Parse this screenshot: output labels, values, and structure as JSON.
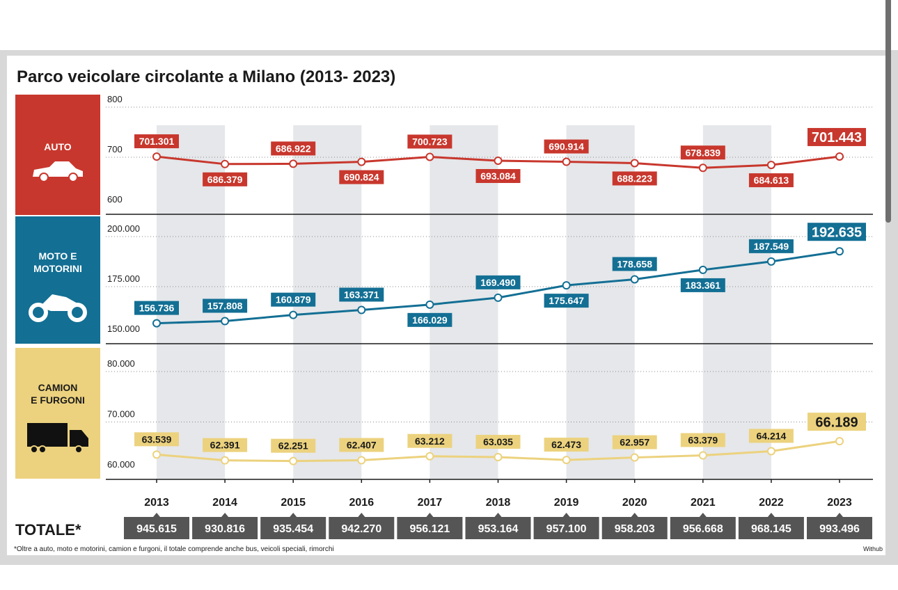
{
  "chart_data": {
    "type": "line",
    "title": "Parco veicolare circolante a Milano (2013- 2023)",
    "categories": [
      "2013",
      "2014",
      "2015",
      "2016",
      "2017",
      "2018",
      "2019",
      "2020",
      "2021",
      "2022",
      "2023"
    ],
    "panels": [
      {
        "name": "AUTO",
        "label_lines": [
          "AUTO"
        ],
        "icon": "car-icon",
        "color": "#c8372d",
        "label_bg": "#c8372d",
        "label_text_color": "#ffffff",
        "ylim": [
          600,
          800
        ],
        "yticks": [
          800,
          700,
          600
        ],
        "ytick_labels": [
          "800",
          "700",
          "600"
        ],
        "values": [
          701.301,
          686.379,
          686.922,
          690.824,
          700.723,
          693.084,
          690.914,
          688.223,
          678.839,
          684.613,
          701.443
        ],
        "value_labels": [
          "701.301",
          "686.379",
          "686.922",
          "690.824",
          "700.723",
          "693.084",
          "690.914",
          "688.223",
          "678.839",
          "684.613",
          "701.443"
        ],
        "label_side": [
          "above",
          "below",
          "above",
          "below",
          "above",
          "below",
          "above",
          "below",
          "above",
          "below",
          "above"
        ]
      },
      {
        "name": "MOTO E MOTORINI",
        "label_lines": [
          "MOTO E",
          "MOTORINI"
        ],
        "icon": "motorbike-icon",
        "color": "#136f94",
        "label_bg": "#136f94",
        "label_text_color": "#ffffff",
        "ylim": [
          150000,
          200000
        ],
        "yticks": [
          200000,
          175000,
          150000
        ],
        "ytick_labels": [
          "200.000",
          "175.000",
          "150.000"
        ],
        "values": [
          156736,
          157808,
          160879,
          163371,
          166029,
          169490,
          175647,
          178658,
          183361,
          187549,
          192635
        ],
        "value_labels": [
          "156.736",
          "157.808",
          "160.879",
          "163.371",
          "166.029",
          "169.490",
          "175.647",
          "178.658",
          "183.361",
          "187.549",
          "192.635"
        ],
        "label_side": [
          "above",
          "above",
          "above",
          "above",
          "below",
          "above",
          "below",
          "above",
          "below",
          "above",
          "above"
        ]
      },
      {
        "name": "CAMION E FURGONI",
        "label_lines": [
          "CAMION",
          "E FURGONI"
        ],
        "icon": "truck-icon",
        "color": "#ecd27e",
        "label_bg": "#ecd27e",
        "label_text_color": "#1a1a1a",
        "ylim": [
          60000,
          80000
        ],
        "yticks": [
          80000,
          70000,
          60000
        ],
        "ytick_labels": [
          "80.000",
          "70.000",
          "60.000"
        ],
        "values": [
          63539,
          62391,
          62251,
          62407,
          63212,
          63035,
          62473,
          62957,
          63379,
          64214,
          66189
        ],
        "value_labels": [
          "63.539",
          "62.391",
          "62.251",
          "62.407",
          "63.212",
          "63.035",
          "62.473",
          "62.957",
          "63.379",
          "64.214",
          "66.189"
        ],
        "label_side": [
          "above",
          "above",
          "above",
          "above",
          "above",
          "above",
          "above",
          "above",
          "above",
          "above",
          "above"
        ]
      }
    ],
    "totals_label": "TOTALE*",
    "totals": [
      "945.615",
      "930.816",
      "935.454",
      "942.270",
      "956.121",
      "953.164",
      "957.100",
      "958.203",
      "956.668",
      "968.145",
      "993.496"
    ],
    "footnote": "*Oltre a auto, moto e motorini, camion e furgoni, il totale comprende anche bus, veicoli speciali, rimorchi",
    "source": "Withub",
    "colors": {
      "shade": "#e5e7ea",
      "totals_bg": "#555555",
      "axis": "#1a1a1a"
    }
  }
}
